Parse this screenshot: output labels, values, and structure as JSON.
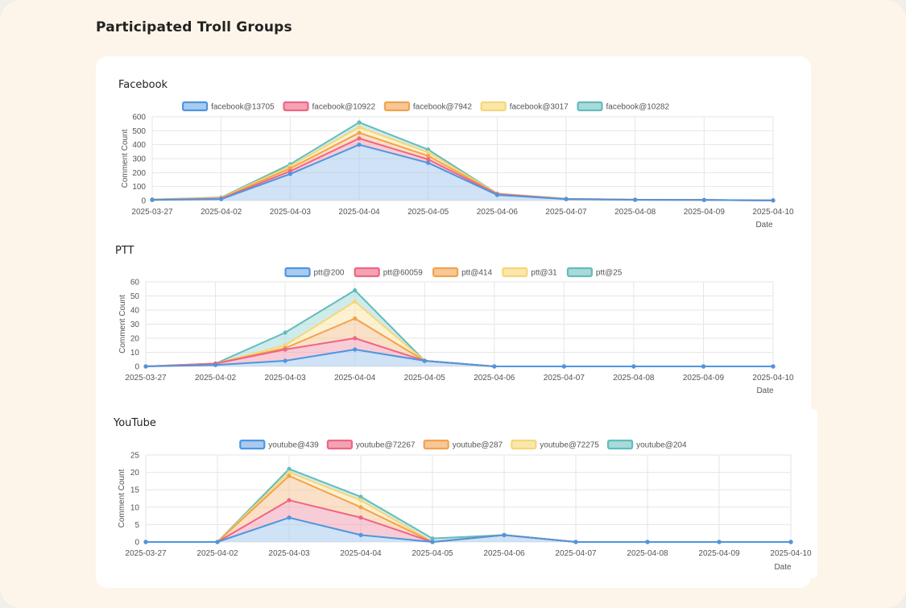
{
  "page": {
    "title": "Participated Troll Groups"
  },
  "colors": {
    "series": [
      {
        "stroke": "#4d96e0",
        "fill": "#a9cbef"
      },
      {
        "stroke": "#ef6584",
        "fill": "#f3a3b4"
      },
      {
        "stroke": "#f3a24d",
        "fill": "#f6c797"
      },
      {
        "stroke": "#f7d774",
        "fill": "#f9e7ad"
      },
      {
        "stroke": "#63bcbc",
        "fill": "#a9dada"
      }
    ],
    "grid": "#e6e6e6",
    "text": "#555555"
  },
  "chart_data": [
    {
      "type": "area",
      "stacked": true,
      "title": "Facebook",
      "xlabel": "Date",
      "ylabel": "Comment Count",
      "ylim": [
        0,
        600
      ],
      "yticks": [
        0,
        100,
        200,
        300,
        400,
        500,
        600
      ],
      "categories": [
        "2025-03-27",
        "2025-04-02",
        "2025-04-03",
        "2025-04-04",
        "2025-04-05",
        "2025-04-06",
        "2025-04-07",
        "2025-04-08",
        "2025-04-09",
        "2025-04-10"
      ],
      "legend_position": "top",
      "series": [
        {
          "name": "facebook@13705",
          "values": [
            4,
            10,
            190,
            400,
            270,
            40,
            10,
            5,
            4,
            1
          ]
        },
        {
          "name": "facebook@10922",
          "values": [
            1,
            3,
            20,
            45,
            25,
            5,
            1,
            1,
            0,
            0
          ]
        },
        {
          "name": "facebook@7942",
          "values": [
            1,
            3,
            20,
            40,
            25,
            3,
            1,
            0,
            0,
            0
          ]
        },
        {
          "name": "facebook@3017",
          "values": [
            1,
            3,
            15,
            40,
            25,
            1,
            0,
            0,
            0,
            0
          ]
        },
        {
          "name": "facebook@10282",
          "values": [
            1,
            3,
            15,
            35,
            20,
            1,
            0,
            0,
            0,
            0
          ]
        }
      ]
    },
    {
      "type": "area",
      "stacked": true,
      "title": "PTT",
      "xlabel": "Date",
      "ylabel": "Comment Count",
      "ylim": [
        0,
        60
      ],
      "yticks": [
        0,
        10,
        20,
        30,
        40,
        50,
        60
      ],
      "categories": [
        "2025-03-27",
        "2025-04-02",
        "2025-04-03",
        "2025-04-04",
        "2025-04-05",
        "2025-04-06",
        "2025-04-07",
        "2025-04-08",
        "2025-04-09",
        "2025-04-10"
      ],
      "legend_position": "top",
      "series": [
        {
          "name": "ptt@200",
          "values": [
            0,
            1,
            4,
            12,
            4,
            0,
            0,
            0,
            0,
            0
          ]
        },
        {
          "name": "ptt@60059",
          "values": [
            0,
            1,
            8,
            8,
            0,
            0,
            0,
            0,
            0,
            0
          ]
        },
        {
          "name": "ptt@414",
          "values": [
            0,
            0,
            1,
            14,
            0,
            0,
            0,
            0,
            0,
            0
          ]
        },
        {
          "name": "ptt@31",
          "values": [
            0,
            0,
            2,
            12,
            0,
            0,
            0,
            0,
            0,
            0
          ]
        },
        {
          "name": "ptt@25",
          "values": [
            0,
            0,
            9,
            8,
            0,
            0,
            0,
            0,
            0,
            0
          ]
        }
      ]
    },
    {
      "type": "area",
      "stacked": true,
      "title": "YouTube",
      "xlabel": "Date",
      "ylabel": "Comment Count",
      "ylim": [
        0,
        25
      ],
      "yticks": [
        0,
        5,
        10,
        15,
        20,
        25
      ],
      "categories": [
        "2025-03-27",
        "2025-04-02",
        "2025-04-03",
        "2025-04-04",
        "2025-04-05",
        "2025-04-06",
        "2025-04-07",
        "2025-04-08",
        "2025-04-09",
        "2025-04-10"
      ],
      "legend_position": "top",
      "series": [
        {
          "name": "youtube@439",
          "values": [
            0,
            0,
            7,
            2,
            0,
            2,
            0,
            0,
            0,
            0
          ]
        },
        {
          "name": "youtube@72267",
          "values": [
            0,
            0,
            5,
            5,
            0,
            0,
            0,
            0,
            0,
            0
          ]
        },
        {
          "name": "youtube@287",
          "values": [
            0,
            0,
            7,
            3,
            0,
            0,
            0,
            0,
            0,
            0
          ]
        },
        {
          "name": "youtube@72275",
          "values": [
            0,
            0,
            1,
            2,
            0,
            0,
            0,
            0,
            0,
            0
          ]
        },
        {
          "name": "youtube@204",
          "values": [
            0,
            0,
            1,
            1,
            1,
            0,
            0,
            0,
            0,
            0
          ]
        }
      ]
    }
  ]
}
